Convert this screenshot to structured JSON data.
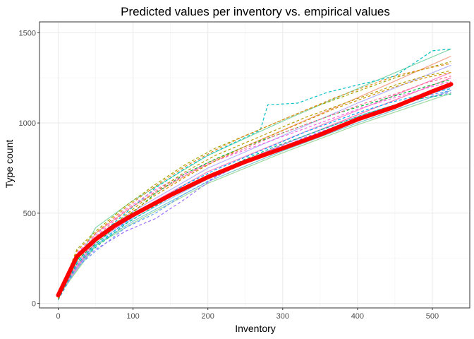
{
  "chart_data": {
    "type": "line",
    "title": "Predicted values per inventory vs. empirical values",
    "xlabel": "Inventory",
    "ylabel": "Type count",
    "xlim": [
      -25,
      550
    ],
    "ylim": [
      -25,
      1560
    ],
    "xticks": [
      0,
      100,
      200,
      300,
      400,
      500
    ],
    "yticks": [
      0,
      500,
      1000,
      1500
    ],
    "grid": true,
    "legend": "none",
    "main_curve": {
      "color": "#ff0000",
      "x": [
        0,
        25,
        50,
        75,
        100,
        150,
        200,
        250,
        300,
        350,
        400,
        450,
        500,
        525
      ],
      "y": [
        45,
        260,
        355,
        430,
        490,
        600,
        700,
        785,
        860,
        935,
        1020,
        1090,
        1175,
        1215
      ]
    },
    "predicted_series": [
      {
        "color": "#7fd6a8",
        "x": [
          0,
          50,
          100,
          200,
          300,
          400,
          525
        ],
        "y": [
          40,
          420,
          570,
          820,
          1010,
          1190,
          1410
        ]
      },
      {
        "color": "#f4a48a",
        "x": [
          0,
          50,
          100,
          200,
          300,
          400,
          525
        ],
        "y": [
          40,
          390,
          540,
          780,
          960,
          1140,
          1370
        ]
      },
      {
        "color": "#b5b0ff",
        "x": [
          0,
          50,
          100,
          200,
          300,
          400,
          525
        ],
        "y": [
          40,
          370,
          510,
          750,
          930,
          1110,
          1320
        ]
      },
      {
        "color": "#ff85c8",
        "x": [
          0,
          50,
          100,
          200,
          300,
          400,
          525
        ],
        "y": [
          40,
          360,
          500,
          730,
          900,
          1070,
          1280
        ]
      },
      {
        "color": "#ff6fb0",
        "x": [
          0,
          50,
          100,
          200,
          300,
          400,
          525
        ],
        "y": [
          40,
          345,
          480,
          705,
          880,
          1045,
          1250
        ]
      },
      {
        "color": "#9ec9ff",
        "x": [
          0,
          50,
          100,
          200,
          300,
          400,
          525
        ],
        "y": [
          40,
          335,
          470,
          690,
          860,
          1020,
          1200
        ]
      },
      {
        "color": "#7ec8d6",
        "x": [
          0,
          50,
          100,
          200,
          300,
          400,
          525
        ],
        "y": [
          40,
          325,
          455,
          675,
          845,
          1000,
          1180
        ]
      },
      {
        "color": "#a0d9a0",
        "x": [
          0,
          50,
          100,
          200,
          300,
          400,
          525
        ],
        "y": [
          40,
          320,
          445,
          665,
          835,
          990,
          1165
        ]
      }
    ],
    "empirical_series": [
      {
        "color": "#00bfc4",
        "x": [
          0,
          25,
          50,
          90,
          130,
          170,
          200,
          240,
          270,
          280,
          320,
          360,
          400,
          450,
          500,
          525
        ],
        "y": [
          20,
          260,
          360,
          500,
          640,
          750,
          820,
          900,
          960,
          1100,
          1110,
          1170,
          1210,
          1260,
          1400,
          1410
        ]
      },
      {
        "color": "#a3a500",
        "x": [
          0,
          25,
          50,
          90,
          130,
          170,
          210,
          250,
          290,
          330,
          370,
          410,
          450,
          490,
          525
        ],
        "y": [
          30,
          300,
          400,
          540,
          660,
          770,
          860,
          930,
          1000,
          1070,
          1130,
          1190,
          1250,
          1300,
          1340
        ]
      },
      {
        "color": "#00ba38",
        "x": [
          0,
          25,
          50,
          90,
          130,
          170,
          210,
          250,
          290,
          330,
          370,
          410,
          450,
          490,
          525
        ],
        "y": [
          25,
          240,
          330,
          470,
          610,
          720,
          800,
          870,
          930,
          990,
          1050,
          1100,
          1150,
          1200,
          1240
        ]
      },
      {
        "color": "#619cff",
        "x": [
          0,
          25,
          50,
          90,
          130,
          170,
          210,
          250,
          290,
          330,
          370,
          410,
          450,
          490,
          525
        ],
        "y": [
          20,
          200,
          290,
          420,
          500,
          610,
          700,
          790,
          860,
          930,
          990,
          1050,
          1100,
          1150,
          1180
        ]
      },
      {
        "color": "#f564e3",
        "x": [
          0,
          25,
          50,
          90,
          130,
          170,
          210,
          250,
          290,
          330,
          370,
          410,
          450,
          490,
          525
        ],
        "y": [
          30,
          280,
          380,
          520,
          630,
          720,
          790,
          850,
          910,
          970,
          1030,
          1090,
          1140,
          1190,
          1230
        ]
      },
      {
        "color": "#b79f00",
        "x": [
          0,
          25,
          50,
          90,
          130,
          170,
          210,
          250,
          290,
          330,
          370,
          410,
          450,
          490,
          525
        ],
        "y": [
          25,
          260,
          350,
          490,
          620,
          730,
          820,
          890,
          960,
          1030,
          1090,
          1150,
          1210,
          1260,
          1290
        ]
      },
      {
        "color": "#9c6dff",
        "x": [
          0,
          25,
          50,
          90,
          130,
          170,
          210,
          250,
          290,
          330,
          370,
          410,
          450,
          490,
          525
        ],
        "y": [
          20,
          210,
          300,
          400,
          470,
          580,
          700,
          780,
          850,
          920,
          980,
          1040,
          1090,
          1140,
          1170
        ]
      },
      {
        "color": "#00a9ff",
        "x": [
          0,
          25,
          50,
          90,
          130,
          170,
          210,
          250,
          290,
          330,
          370,
          410,
          450,
          490,
          525
        ],
        "y": [
          25,
          230,
          320,
          450,
          560,
          660,
          740,
          810,
          880,
          950,
          1010,
          1070,
          1120,
          1160,
          1190
        ]
      },
      {
        "color": "#ff6c91",
        "x": [
          0,
          25,
          50,
          90,
          130,
          170,
          210,
          250,
          290,
          330,
          370,
          410,
          450,
          490,
          525
        ],
        "y": [
          30,
          270,
          370,
          510,
          620,
          710,
          790,
          860,
          930,
          990,
          1050,
          1110,
          1160,
          1220,
          1260
        ]
      },
      {
        "color": "#00c08b",
        "x": [
          0,
          25,
          50,
          90,
          130,
          170,
          210,
          250,
          290,
          330,
          370,
          410,
          450,
          490,
          525
        ],
        "y": [
          20,
          220,
          310,
          440,
          540,
          640,
          720,
          800,
          870,
          930,
          990,
          1050,
          1100,
          1140,
          1160
        ]
      },
      {
        "color": "#e7861b",
        "x": [
          0,
          25,
          50,
          90,
          130,
          170,
          210,
          250,
          290,
          330,
          370,
          410,
          450,
          490,
          525
        ],
        "y": [
          30,
          290,
          390,
          530,
          650,
          760,
          850,
          930,
          1000,
          1070,
          1140,
          1200,
          1260,
          1300,
          1330
        ]
      },
      {
        "color": "#d39200",
        "x": [
          0,
          25,
          50,
          90,
          130,
          170,
          210,
          250,
          290,
          330,
          370,
          410,
          450,
          490,
          525
        ],
        "y": [
          25,
          250,
          345,
          480,
          600,
          700,
          790,
          870,
          940,
          1010,
          1080,
          1140,
          1200,
          1250,
          1280
        ]
      }
    ]
  }
}
